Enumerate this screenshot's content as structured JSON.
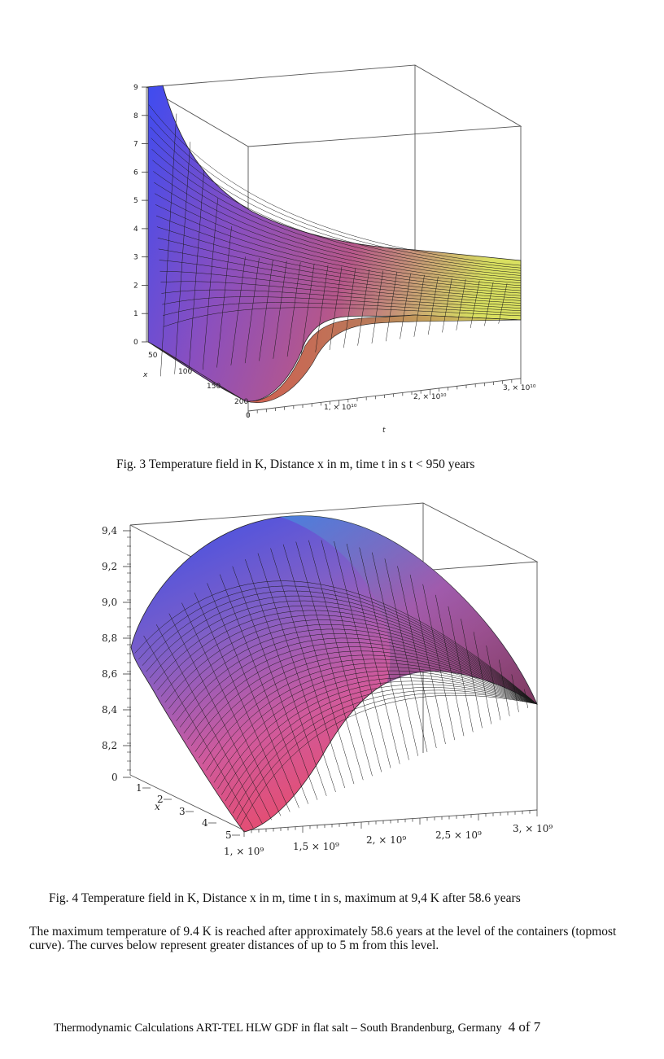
{
  "figure3": {
    "z_ticks": [
      "0",
      "1",
      "2",
      "3",
      "4",
      "5",
      "6",
      "7",
      "8",
      "9"
    ],
    "x_ticks": [
      "50",
      "100",
      "150",
      "200"
    ],
    "x_label": "x",
    "t_ticks": [
      "0",
      "1, × 10¹⁰",
      "2, × 10¹⁰",
      "3, × 10¹⁰"
    ],
    "t_label": "t",
    "caption": "Fig. 3 Temperature field in K, Distance x in m, time t in s  t < 950 years"
  },
  "figure4": {
    "z_ticks": [
      "8,2",
      "8,4",
      "8,6",
      "8,8",
      "9,0",
      "9,2",
      "9,4",
      "0"
    ],
    "x_ticks": [
      "1",
      "2",
      "3",
      "4",
      "5"
    ],
    "x_label": "x",
    "t_ticks": [
      "1, × 10⁹",
      "1,5 × 10⁹",
      "2, × 10⁹",
      "2,5 × 10⁹",
      "3, × 10⁹"
    ],
    "caption": "Fig. 4 Temperature field in K, Distance x in m, time t in s,  maximum at 9,4 K after 58.6 years"
  },
  "paragraph": "The maximum temperature of 9.4 K is reached after approximately 58.6 years at the level of the containers (topmost curve). The curves below represent greater distances of up to 5 m from this level.",
  "footer": {
    "text": "Thermodynamic Calculations ART-TEL  HLW  GDF in flat salt – South Brandenburg, Germany",
    "page": "4 of 7"
  }
}
